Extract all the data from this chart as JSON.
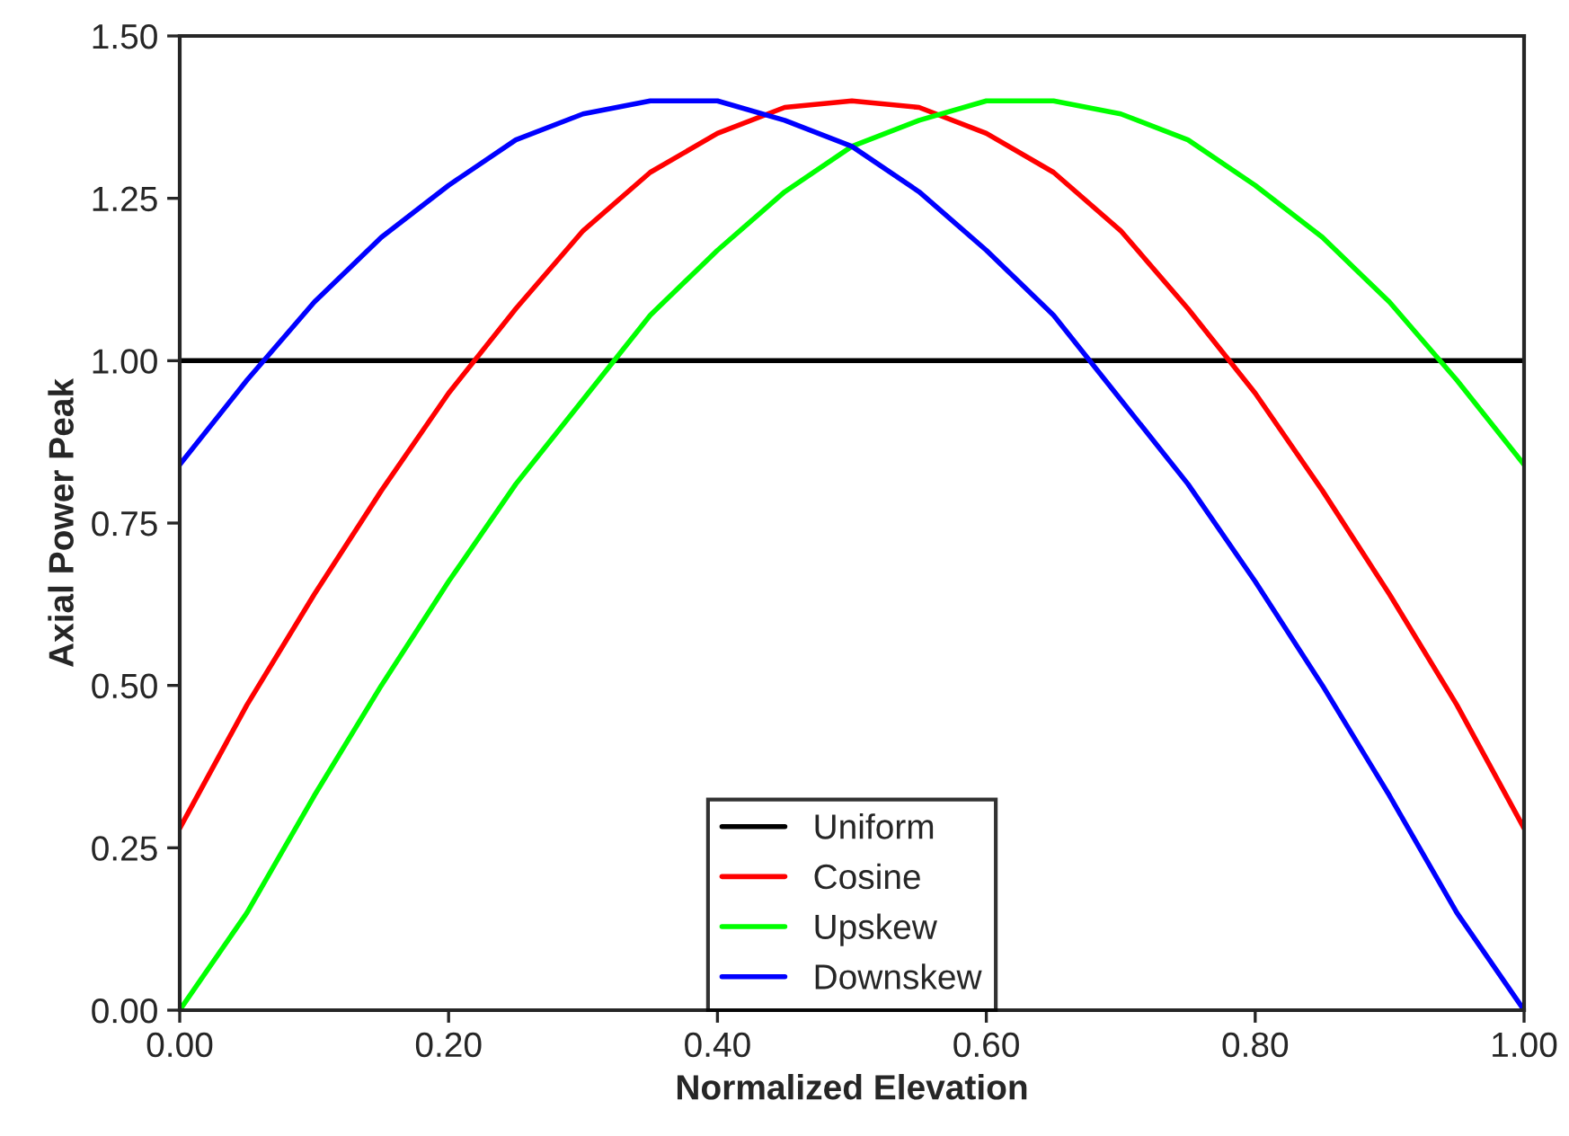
{
  "chart_data": {
    "type": "line",
    "xlabel": "Normalized Elevation",
    "ylabel": "Axial Power Peak",
    "x": [
      0,
      0.05,
      0.1,
      0.15,
      0.2,
      0.25,
      0.3,
      0.35,
      0.4,
      0.45,
      0.5,
      0.55,
      0.6,
      0.65,
      0.7,
      0.75,
      0.8,
      0.85,
      0.9,
      0.95,
      1.0
    ],
    "series": [
      {
        "name": "Uniform",
        "color": "#000000",
        "values": [
          1,
          1,
          1,
          1,
          1,
          1,
          1,
          1,
          1,
          1,
          1,
          1,
          1,
          1,
          1,
          1,
          1,
          1,
          1,
          1,
          1
        ]
      },
      {
        "name": "Cosine",
        "color": "#ff0000",
        "values": [
          0.28,
          0.47,
          0.64,
          0.8,
          0.95,
          1.08,
          1.2,
          1.29,
          1.35,
          1.39,
          1.4,
          1.39,
          1.35,
          1.29,
          1.2,
          1.08,
          0.95,
          0.8,
          0.64,
          0.47,
          0.28
        ]
      },
      {
        "name": "Upskew",
        "color": "#00ff00",
        "values": [
          0.0,
          0.15,
          0.33,
          0.5,
          0.66,
          0.81,
          0.94,
          1.07,
          1.17,
          1.26,
          1.33,
          1.37,
          1.4,
          1.4,
          1.38,
          1.34,
          1.27,
          1.19,
          1.09,
          0.97,
          0.84
        ]
      },
      {
        "name": "Downskew",
        "color": "#0000ff",
        "values": [
          0.84,
          0.97,
          1.09,
          1.19,
          1.27,
          1.34,
          1.38,
          1.4,
          1.4,
          1.37,
          1.33,
          1.26,
          1.17,
          1.07,
          0.94,
          0.81,
          0.66,
          0.5,
          0.33,
          0.15,
          0.0
        ]
      }
    ],
    "xlim": [
      0,
      1
    ],
    "xticks": [
      {
        "value": 0,
        "label": "0.00"
      },
      {
        "value": 0.2,
        "label": "0.20"
      },
      {
        "value": 0.4,
        "label": "0.40"
      },
      {
        "value": 0.6,
        "label": "0.60"
      },
      {
        "value": 0.8,
        "label": "0.80"
      },
      {
        "value": 1,
        "label": "1.00"
      }
    ],
    "ylim": [
      0,
      1.5
    ],
    "yticks": [
      {
        "value": 0,
        "label": "0.00"
      },
      {
        "value": 0.25,
        "label": "0.25"
      },
      {
        "value": 0.5,
        "label": "0.50"
      },
      {
        "value": 0.75,
        "label": "0.75"
      },
      {
        "value": 1,
        "label": "1.00"
      },
      {
        "value": 1.25,
        "label": "1.25"
      },
      {
        "value": 1.5,
        "label": "1.50"
      }
    ],
    "legend": "bottom",
    "grid": false,
    "line_style": "solid",
    "marker": "none"
  }
}
